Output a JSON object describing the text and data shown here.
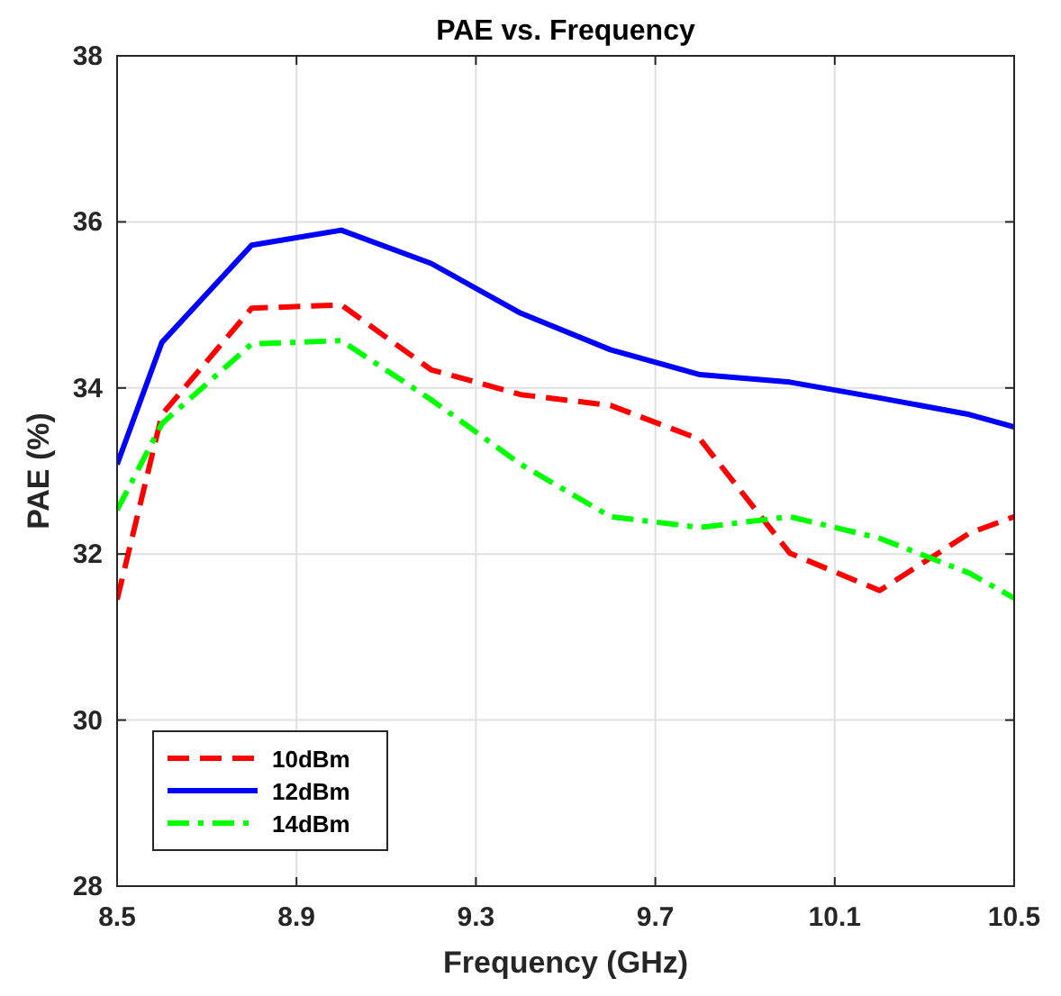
{
  "chart_data": {
    "type": "line",
    "title": "PAE vs. Frequency",
    "xlabel": "Frequency (GHz)",
    "ylabel": "PAE (%)",
    "x": [
      8.5,
      8.6,
      8.8,
      9.0,
      9.2,
      9.4,
      9.6,
      9.8,
      10.0,
      10.2,
      10.4,
      10.5
    ],
    "series": [
      {
        "name": "10dBm",
        "color": "#ff0000",
        "line_style": "dashed",
        "values": [
          31.45,
          33.68,
          34.96,
          35.0,
          34.22,
          33.92,
          33.79,
          33.38,
          32.01,
          31.56,
          32.25,
          32.45
        ]
      },
      {
        "name": "12dBm",
        "color": "#0000ff",
        "line_style": "solid",
        "values": [
          33.08,
          34.55,
          35.72,
          35.9,
          35.5,
          34.9,
          34.46,
          34.16,
          34.07,
          33.88,
          33.68,
          33.53
        ]
      },
      {
        "name": "14dBm",
        "color": "#00ff00",
        "line_style": "dotted",
        "values": [
          32.53,
          33.57,
          34.53,
          34.57,
          33.86,
          33.08,
          32.45,
          32.32,
          32.45,
          32.19,
          31.77,
          31.47
        ]
      }
    ],
    "xlim": [
      8.5,
      10.5
    ],
    "xticks": [
      8.5,
      8.9,
      9.3,
      9.7,
      10.1,
      10.5
    ],
    "ylim": [
      28,
      38
    ],
    "yticks": [
      28,
      30,
      32,
      34,
      36,
      38
    ],
    "grid": true,
    "legend": "bottom left"
  }
}
